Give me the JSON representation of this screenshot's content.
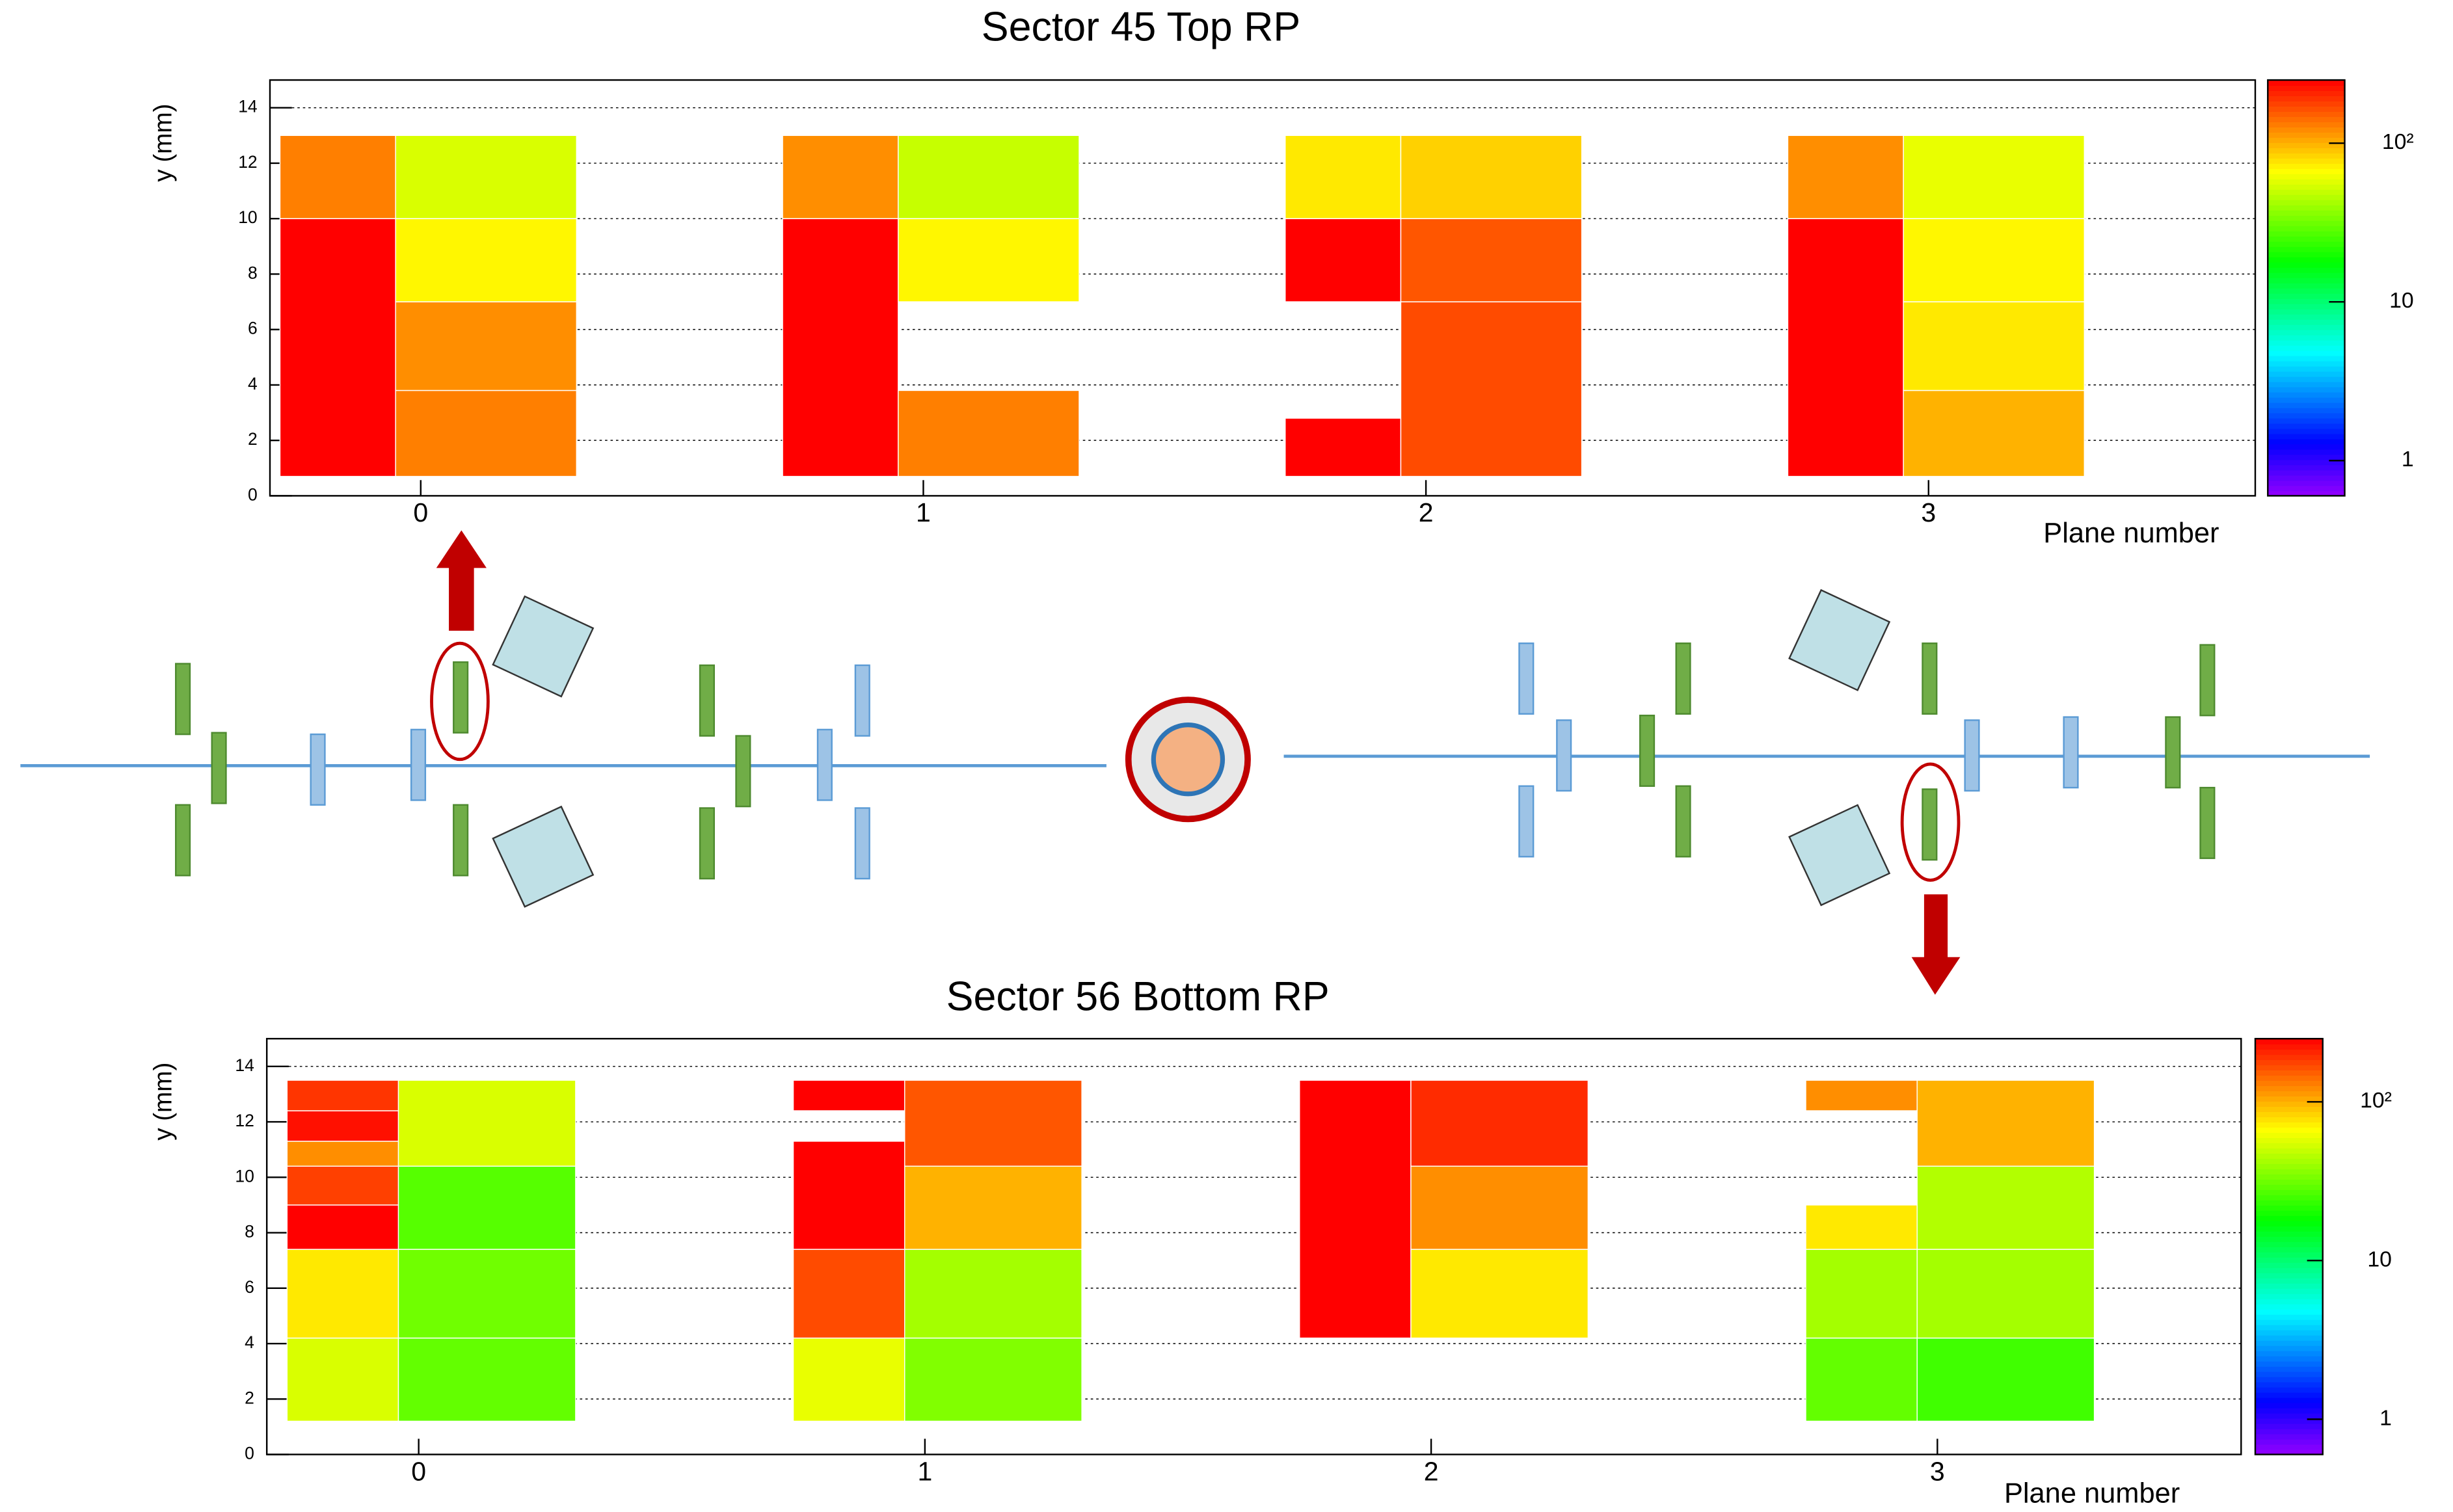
{
  "chart_data": [
    {
      "type": "heatmap",
      "title": "Sector 45 Top RP",
      "x_label": "Plane number",
      "y_label": "y (mm)",
      "xlim": [
        -0.3,
        3.65
      ],
      "ylim": [
        0,
        15
      ],
      "xticks": [
        0,
        1,
        2,
        3
      ],
      "yticks": [
        0,
        2,
        4,
        6,
        8,
        10,
        12,
        14
      ],
      "zlim": [
        0.6,
        250
      ],
      "zticks": [
        1,
        10,
        {
          "value": 100,
          "label": "10²"
        }
      ],
      "log_z": true,
      "grid": true,
      "cells": [
        {
          "x": [
            -0.28,
            -0.05
          ],
          "y": [
            0.7,
            10
          ],
          "value": 250
        },
        {
          "x": [
            -0.28,
            -0.05
          ],
          "y": [
            10,
            13
          ],
          "value": 130
        },
        {
          "x": [
            -0.05,
            0.31
          ],
          "y": [
            0.7,
            3.8
          ],
          "value": 130
        },
        {
          "x": [
            -0.05,
            0.31
          ],
          "y": [
            3.8,
            7
          ],
          "value": 120
        },
        {
          "x": [
            -0.05,
            0.31
          ],
          "y": [
            7,
            10
          ],
          "value": 70
        },
        {
          "x": [
            -0.05,
            0.31
          ],
          "y": [
            10,
            13
          ],
          "value": 55
        },
        {
          "x": [
            0.72,
            0.95
          ],
          "y": [
            0.7,
            10
          ],
          "value": 250
        },
        {
          "x": [
            0.72,
            0.95
          ],
          "y": [
            10,
            13
          ],
          "value": 120
        },
        {
          "x": [
            0.95,
            1.31
          ],
          "y": [
            0.7,
            3.8
          ],
          "value": 130
        },
        {
          "x": [
            0.95,
            1.31
          ],
          "y": [
            7,
            10
          ],
          "value": 70
        },
        {
          "x": [
            0.95,
            1.31
          ],
          "y": [
            10,
            13
          ],
          "value": 50
        },
        {
          "x": [
            1.72,
            1.95
          ],
          "y": [
            0.7,
            2.8
          ],
          "value": 250
        },
        {
          "x": [
            1.72,
            1.95
          ],
          "y": [
            7,
            10
          ],
          "value": 250
        },
        {
          "x": [
            1.72,
            1.95
          ],
          "y": [
            10,
            13
          ],
          "value": 75
        },
        {
          "x": [
            1.95,
            2.31
          ],
          "y": [
            0.7,
            7
          ],
          "value": 170
        },
        {
          "x": [
            1.95,
            2.31
          ],
          "y": [
            7,
            10
          ],
          "value": 160
        },
        {
          "x": [
            1.95,
            2.31
          ],
          "y": [
            10,
            13
          ],
          "value": 85
        },
        {
          "x": [
            2.72,
            2.95
          ],
          "y": [
            0.7,
            10
          ],
          "value": 250
        },
        {
          "x": [
            2.72,
            2.95
          ],
          "y": [
            10,
            13
          ],
          "value": 120
        },
        {
          "x": [
            2.95,
            3.31
          ],
          "y": [
            0.7,
            3.8
          ],
          "value": 100
        },
        {
          "x": [
            2.95,
            3.31
          ],
          "y": [
            3.8,
            7
          ],
          "value": 75
        },
        {
          "x": [
            2.95,
            3.31
          ],
          "y": [
            7,
            10
          ],
          "value": 70
        },
        {
          "x": [
            2.95,
            3.31
          ],
          "y": [
            10,
            13
          ],
          "value": 60
        }
      ]
    },
    {
      "type": "heatmap",
      "title": "Sector 56 Bottom RP",
      "x_label": "Plane number",
      "y_label": "y (mm)",
      "xlim": [
        -0.3,
        3.6
      ],
      "ylim": [
        0,
        15
      ],
      "xticks": [
        0,
        1,
        2,
        3
      ],
      "yticks": [
        0,
        2,
        4,
        6,
        8,
        10,
        12,
        14
      ],
      "zlim": [
        0.6,
        250
      ],
      "zticks": [
        1,
        10,
        {
          "value": 100,
          "label": "10²"
        }
      ],
      "log_z": true,
      "grid": true,
      "cells": [
        {
          "x": [
            -0.26,
            -0.04
          ],
          "y": [
            1.2,
            4.2
          ],
          "value": 55
        },
        {
          "x": [
            -0.26,
            -0.04
          ],
          "y": [
            4.2,
            7.4
          ],
          "value": 75
        },
        {
          "x": [
            -0.26,
            -0.04
          ],
          "y": [
            7.4,
            9
          ],
          "value": 250
        },
        {
          "x": [
            -0.26,
            -0.04
          ],
          "y": [
            9,
            10.4
          ],
          "value": 180
        },
        {
          "x": [
            -0.26,
            -0.04
          ],
          "y": [
            10.4,
            11.3
          ],
          "value": 120
        },
        {
          "x": [
            -0.26,
            -0.04
          ],
          "y": [
            11.3,
            12.4
          ],
          "value": 230
        },
        {
          "x": [
            -0.26,
            -0.04
          ],
          "y": [
            12.4,
            13.5
          ],
          "value": 190
        },
        {
          "x": [
            -0.04,
            0.31
          ],
          "y": [
            1.2,
            4.2
          ],
          "value": 30
        },
        {
          "x": [
            -0.04,
            0.31
          ],
          "y": [
            4.2,
            7.4
          ],
          "value": 32
        },
        {
          "x": [
            -0.04,
            0.31
          ],
          "y": [
            7.4,
            10.4
          ],
          "value": 28
        },
        {
          "x": [
            -0.04,
            0.31
          ],
          "y": [
            10.4,
            13.5
          ],
          "value": 55
        },
        {
          "x": [
            0.74,
            0.96
          ],
          "y": [
            1.2,
            4.2
          ],
          "value": 60
        },
        {
          "x": [
            0.74,
            0.96
          ],
          "y": [
            4.2,
            7.4
          ],
          "value": 170
        },
        {
          "x": [
            0.74,
            0.96
          ],
          "y": [
            7.4,
            11.3
          ],
          "value": 250
        },
        {
          "x": [
            0.74,
            0.96
          ],
          "y": [
            12.4,
            13.5
          ],
          "value": 250
        },
        {
          "x": [
            0.96,
            1.31
          ],
          "y": [
            1.2,
            4.2
          ],
          "value": 35
        },
        {
          "x": [
            0.96,
            1.31
          ],
          "y": [
            4.2,
            7.4
          ],
          "value": 42
        },
        {
          "x": [
            0.96,
            1.31
          ],
          "y": [
            7.4,
            10.4
          ],
          "value": 100
        },
        {
          "x": [
            0.96,
            1.31
          ],
          "y": [
            10.4,
            13.5
          ],
          "value": 160
        },
        {
          "x": [
            1.74,
            1.96
          ],
          "y": [
            4.2,
            13.5
          ],
          "value": 250
        },
        {
          "x": [
            1.96,
            2.31
          ],
          "y": [
            4.2,
            7.4
          ],
          "value": 75
        },
        {
          "x": [
            1.96,
            2.31
          ],
          "y": [
            7.4,
            10.4
          ],
          "value": 120
        },
        {
          "x": [
            1.96,
            2.31
          ],
          "y": [
            10.4,
            13.5
          ],
          "value": 200
        },
        {
          "x": [
            2.74,
            2.96
          ],
          "y": [
            1.2,
            4.2
          ],
          "value": 30
        },
        {
          "x": [
            2.74,
            2.96
          ],
          "y": [
            4.2,
            7.4
          ],
          "value": 42
        },
        {
          "x": [
            2.74,
            2.96
          ],
          "y": [
            7.4,
            9
          ],
          "value": 75
        },
        {
          "x": [
            2.74,
            2.96
          ],
          "y": [
            12.4,
            13.5
          ],
          "value": 120
        },
        {
          "x": [
            2.96,
            3.31
          ],
          "y": [
            1.2,
            4.2
          ],
          "value": 25
        },
        {
          "x": [
            2.96,
            3.31
          ],
          "y": [
            4.2,
            7.4
          ],
          "value": 42
        },
        {
          "x": [
            2.96,
            3.31
          ],
          "y": [
            7.4,
            10.4
          ],
          "value": 45
        },
        {
          "x": [
            2.96,
            3.31
          ],
          "y": [
            10.4,
            13.5
          ],
          "value": 100
        }
      ]
    }
  ]
}
